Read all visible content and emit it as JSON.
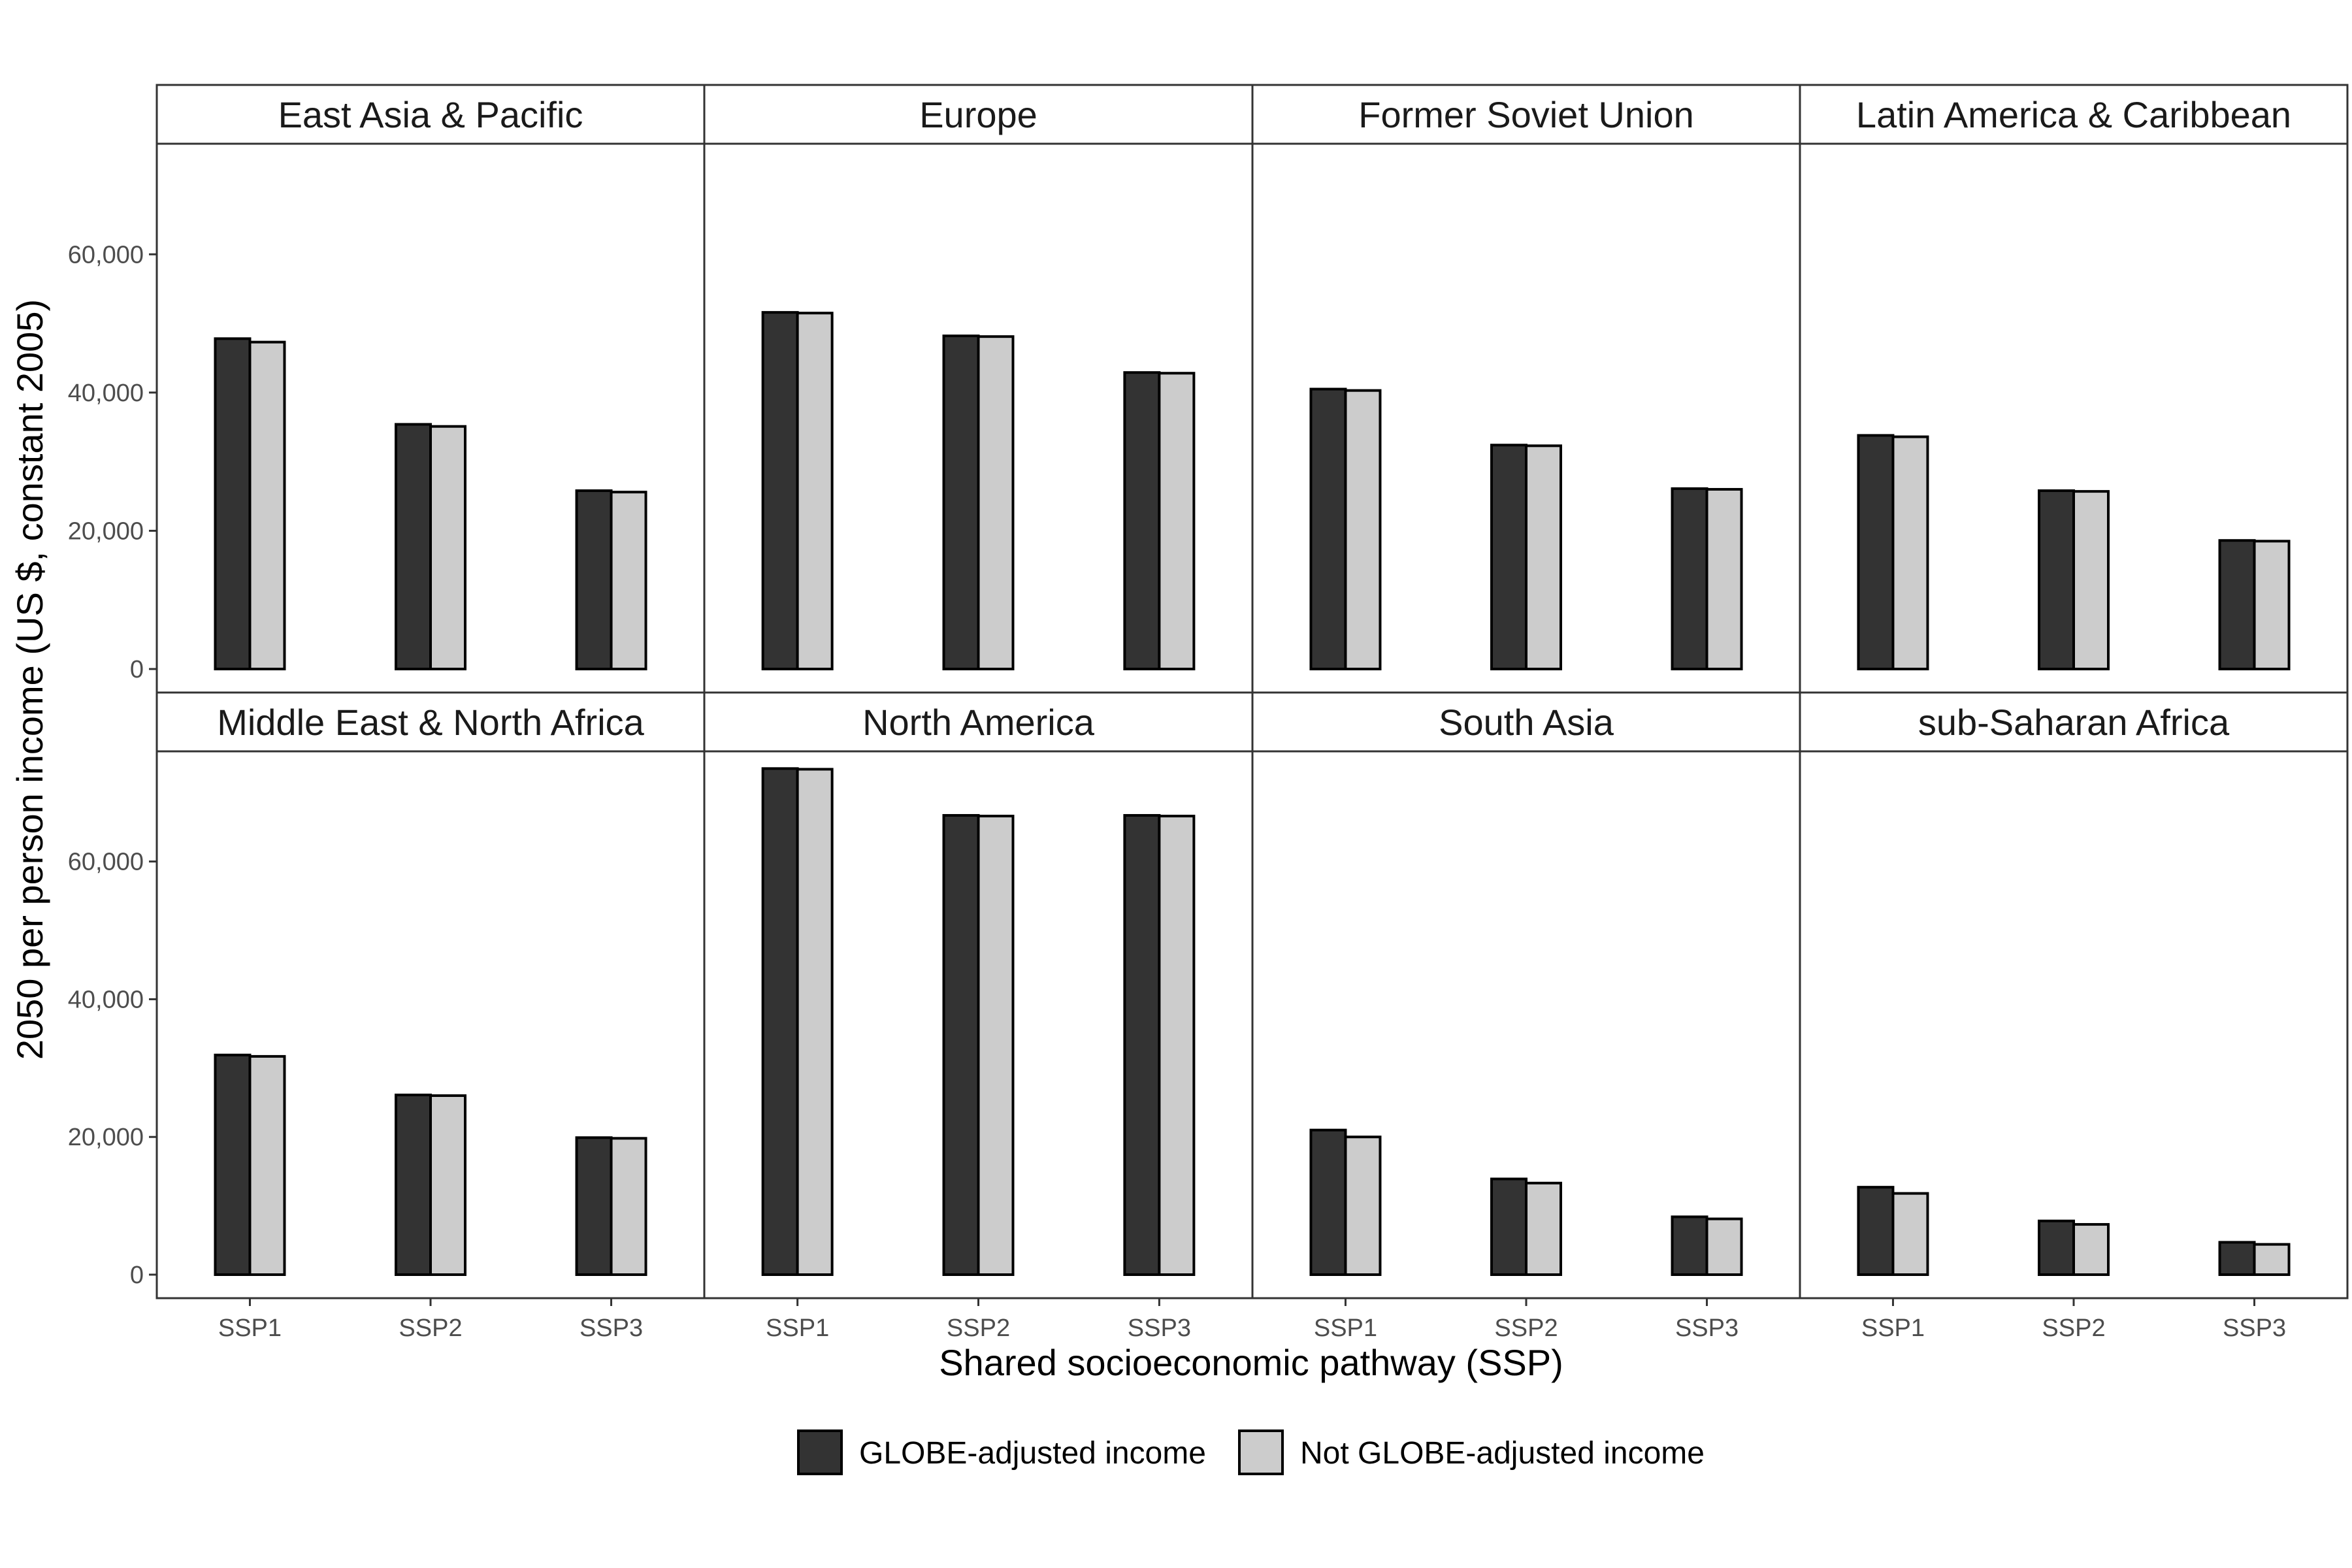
{
  "chart_data": {
    "type": "bar",
    "facet_layout": "4x2",
    "categories": [
      "SSP1",
      "SSP2",
      "SSP3"
    ],
    "ylim": [
      0,
      76000
    ],
    "yticks": [
      0,
      20000,
      40000,
      60000
    ],
    "ytick_labels": [
      "0",
      "20,000",
      "40,000",
      "60,000"
    ],
    "xlabel": "Shared socioeconomic pathway (SSP)",
    "ylabel": "2050 per person income (US $, constant 2005)",
    "legend_position": "bottom",
    "series": [
      {
        "name": "GLOBE-adjusted income",
        "color": "#333333"
      },
      {
        "name": "Not GLOBE-adjusted income",
        "color": "#cccccc"
      }
    ],
    "panels": [
      {
        "title": "East Asia & Pacific",
        "values": [
          [
            47800,
            35400,
            25800
          ],
          [
            47300,
            35100,
            25600
          ]
        ]
      },
      {
        "title": "Europe",
        "values": [
          [
            51600,
            48200,
            42900
          ],
          [
            51500,
            48100,
            42800
          ]
        ]
      },
      {
        "title": "Former Soviet Union",
        "values": [
          [
            40500,
            32400,
            26100
          ],
          [
            40300,
            32300,
            26000
          ]
        ]
      },
      {
        "title": "Latin America & Caribbean",
        "values": [
          [
            33800,
            25800,
            18600
          ],
          [
            33600,
            25700,
            18500
          ]
        ]
      },
      {
        "title": "Middle East & North Africa",
        "values": [
          [
            31900,
            26100,
            19900
          ],
          [
            31700,
            26000,
            19800
          ]
        ]
      },
      {
        "title": "North America",
        "values": [
          [
            73500,
            66700,
            66700
          ],
          [
            73400,
            66600,
            66600
          ]
        ]
      },
      {
        "title": "South Asia",
        "values": [
          [
            21000,
            13900,
            8400
          ],
          [
            20000,
            13300,
            8100
          ]
        ]
      },
      {
        "title": "sub-Saharan Africa",
        "values": [
          [
            12700,
            7800,
            4700
          ],
          [
            11800,
            7300,
            4400
          ]
        ]
      }
    ]
  }
}
